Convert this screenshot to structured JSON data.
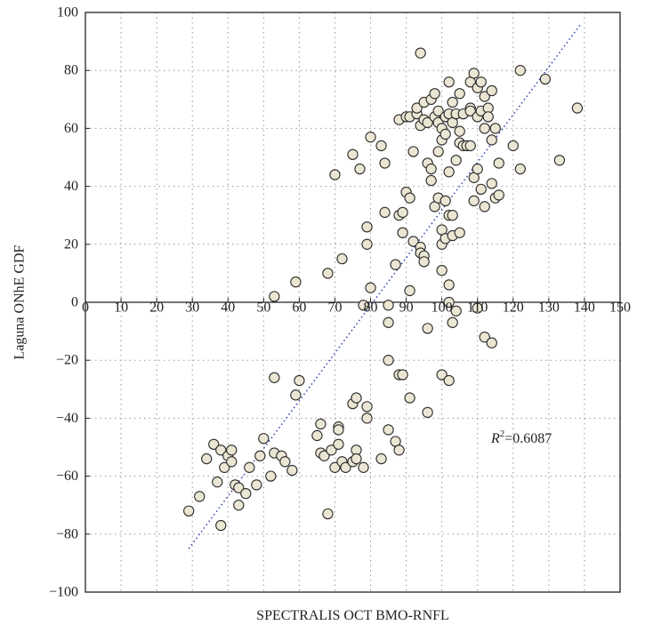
{
  "chart_data": {
    "type": "scatter",
    "xlabel": "SPECTRALIS OCT BMO-RNFL",
    "ylabel": "Laguna ONhE GDF",
    "xlim": [
      0,
      150
    ],
    "ylim": [
      -100,
      100
    ],
    "x_ticks": [
      "0",
      "10",
      "20",
      "30",
      "40",
      "50",
      "60",
      "70",
      "80",
      "90",
      "100",
      "110",
      "120",
      "130",
      "140",
      "150"
    ],
    "y_ticks": [
      "100",
      "80",
      "60",
      "40",
      "20",
      "0",
      "−20",
      "−40",
      "−60",
      "−80",
      "−100"
    ],
    "grid": true,
    "annotation": {
      "r2_symbol": "R",
      "r2_sup": "2",
      "r2_value": "=0.6087"
    },
    "trendline": {
      "x": [
        29,
        139
      ],
      "y": [
        -85,
        96
      ],
      "style": "dotted"
    },
    "points": [
      [
        29,
        -72
      ],
      [
        32,
        -67
      ],
      [
        34,
        -54
      ],
      [
        36,
        -49
      ],
      [
        37,
        -62
      ],
      [
        38,
        -77
      ],
      [
        38,
        -51
      ],
      [
        39,
        -57
      ],
      [
        40,
        -53
      ],
      [
        41,
        -51
      ],
      [
        41,
        -55
      ],
      [
        42,
        -63
      ],
      [
        43,
        -64
      ],
      [
        43,
        -70
      ],
      [
        45,
        -66
      ],
      [
        46,
        -57
      ],
      [
        48,
        -63
      ],
      [
        49,
        -53
      ],
      [
        50,
        -47
      ],
      [
        52,
        -60
      ],
      [
        53,
        -26
      ],
      [
        53,
        -52
      ],
      [
        55,
        -53
      ],
      [
        56,
        -55
      ],
      [
        58,
        -58
      ],
      [
        59,
        -32
      ],
      [
        60,
        -27
      ],
      [
        65,
        -46
      ],
      [
        66,
        -42
      ],
      [
        66,
        -52
      ],
      [
        67,
        -53
      ],
      [
        68,
        -73
      ],
      [
        69,
        -51
      ],
      [
        70,
        -57
      ],
      [
        71,
        -43
      ],
      [
        71,
        -44
      ],
      [
        71,
        -49
      ],
      [
        72,
        -55
      ],
      [
        73,
        -57
      ],
      [
        75,
        -35
      ],
      [
        75,
        -55
      ],
      [
        76,
        -33
      ],
      [
        76,
        -51
      ],
      [
        76,
        -54
      ],
      [
        78,
        -57
      ],
      [
        79,
        -36
      ],
      [
        79,
        -40
      ],
      [
        83,
        -54
      ],
      [
        85,
        -44
      ],
      [
        87,
        -48
      ],
      [
        88,
        -25
      ],
      [
        88,
        -51
      ],
      [
        89,
        -25
      ],
      [
        91,
        -33
      ],
      [
        85,
        -20
      ],
      [
        96,
        -38
      ],
      [
        100,
        -25
      ],
      [
        102,
        -27
      ],
      [
        53,
        2
      ],
      [
        59,
        7
      ],
      [
        68,
        10
      ],
      [
        72,
        15
      ],
      [
        79,
        26
      ],
      [
        79,
        20
      ],
      [
        80,
        5
      ],
      [
        78,
        -1
      ],
      [
        85,
        -7
      ],
      [
        85,
        -1
      ],
      [
        87,
        13
      ],
      [
        88,
        30
      ],
      [
        89,
        24
      ],
      [
        89,
        31
      ],
      [
        90,
        38
      ],
      [
        91,
        36
      ],
      [
        91,
        4
      ],
      [
        92,
        21
      ],
      [
        94,
        19
      ],
      [
        94,
        17
      ],
      [
        95,
        16
      ],
      [
        95,
        14
      ],
      [
        96,
        -9
      ],
      [
        98,
        33
      ],
      [
        99,
        36
      ],
      [
        100,
        20
      ],
      [
        100,
        25
      ],
      [
        100,
        11
      ],
      [
        101,
        22
      ],
      [
        101,
        35
      ],
      [
        102,
        30
      ],
      [
        102,
        6
      ],
      [
        102,
        0
      ],
      [
        103,
        -7
      ],
      [
        103,
        23
      ],
      [
        103,
        30
      ],
      [
        104,
        -3
      ],
      [
        105,
        24
      ],
      [
        110,
        -2
      ],
      [
        112,
        -12
      ],
      [
        114,
        -14
      ],
      [
        70,
        44
      ],
      [
        75,
        51
      ],
      [
        77,
        46
      ],
      [
        80,
        57
      ],
      [
        83,
        54
      ],
      [
        84,
        48
      ],
      [
        84,
        31
      ],
      [
        88,
        63
      ],
      [
        90,
        64
      ],
      [
        91,
        64
      ],
      [
        92,
        52
      ],
      [
        93,
        65
      ],
      [
        93,
        67
      ],
      [
        94,
        86
      ],
      [
        94,
        61
      ],
      [
        95,
        63
      ],
      [
        95,
        69
      ],
      [
        96,
        48
      ],
      [
        96,
        62
      ],
      [
        97,
        70
      ],
      [
        97,
        42
      ],
      [
        97,
        46
      ],
      [
        98,
        64
      ],
      [
        98,
        72
      ],
      [
        99,
        52
      ],
      [
        99,
        66
      ],
      [
        99,
        62
      ],
      [
        100,
        60
      ],
      [
        100,
        56
      ],
      [
        101,
        64
      ],
      [
        101,
        58
      ],
      [
        102,
        76
      ],
      [
        102,
        65
      ],
      [
        102,
        45
      ],
      [
        103,
        62
      ],
      [
        103,
        69
      ],
      [
        104,
        49
      ],
      [
        104,
        65
      ],
      [
        105,
        72
      ],
      [
        105,
        59
      ],
      [
        105,
        55
      ],
      [
        106,
        65
      ],
      [
        106,
        54
      ],
      [
        107,
        54
      ],
      [
        108,
        54
      ],
      [
        108,
        67
      ],
      [
        108,
        66
      ],
      [
        108,
        76
      ],
      [
        109,
        79
      ],
      [
        109,
        43
      ],
      [
        109,
        35
      ],
      [
        110,
        74
      ],
      [
        110,
        64
      ],
      [
        110,
        46
      ],
      [
        111,
        76
      ],
      [
        111,
        39
      ],
      [
        111,
        66
      ],
      [
        112,
        71
      ],
      [
        112,
        60
      ],
      [
        112,
        33
      ],
      [
        113,
        67
      ],
      [
        113,
        64
      ],
      [
        114,
        73
      ],
      [
        114,
        56
      ],
      [
        114,
        41
      ],
      [
        115,
        36
      ],
      [
        115,
        60
      ],
      [
        116,
        48
      ],
      [
        116,
        37
      ],
      [
        120,
        54
      ],
      [
        122,
        80
      ],
      [
        122,
        46
      ],
      [
        129,
        77
      ],
      [
        133,
        49
      ],
      [
        138,
        67
      ]
    ]
  }
}
